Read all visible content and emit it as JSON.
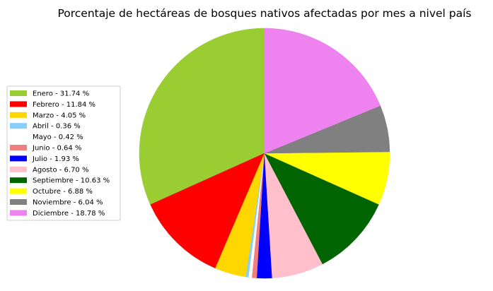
{
  "chart_data": {
    "type": "pie",
    "title": "Porcentaje de hectáreas de bosques nativos afectadas por mes a nivel país",
    "start_angle_deg": 90,
    "direction": "counterclockwise",
    "legend_position": "left",
    "slices": [
      {
        "label": "Enero",
        "value": 31.74,
        "legend": "Enero - 31.74 %",
        "color": "#9ACD32"
      },
      {
        "label": "Febrero",
        "value": 11.84,
        "legend": "Febrero - 11.84 %",
        "color": "#FF0000"
      },
      {
        "label": "Marzo",
        "value": 4.05,
        "legend": "Marzo - 4.05 %",
        "color": "#FFD700"
      },
      {
        "label": "Abril",
        "value": 0.36,
        "legend": "Abril - 0.36 %",
        "color": "#87CEFA"
      },
      {
        "label": "Mayo",
        "value": 0.42,
        "legend": "Mayo - 0.42 %",
        "color": "#FFFFFF"
      },
      {
        "label": "Junio",
        "value": 0.64,
        "legend": "Junio - 0.64 %",
        "color": "#F08080"
      },
      {
        "label": "Julio",
        "value": 1.93,
        "legend": "Julio - 1.93 %",
        "color": "#0000FF"
      },
      {
        "label": "Agosto",
        "value": 6.7,
        "legend": "Agosto - 6.70 %",
        "color": "#FFC0CB"
      },
      {
        "label": "Septiembre",
        "value": 10.63,
        "legend": "Septiembre - 10.63 %",
        "color": "#006400"
      },
      {
        "label": "Octubre",
        "value": 6.88,
        "legend": "Octubre - 6.88 %",
        "color": "#FFFF00"
      },
      {
        "label": "Noviembre",
        "value": 6.04,
        "legend": "Noviembre - 6.04 %",
        "color": "#808080"
      },
      {
        "label": "Diciembre",
        "value": 18.78,
        "legend": "Diciembre - 18.78 %",
        "color": "#EE82EE"
      }
    ]
  }
}
